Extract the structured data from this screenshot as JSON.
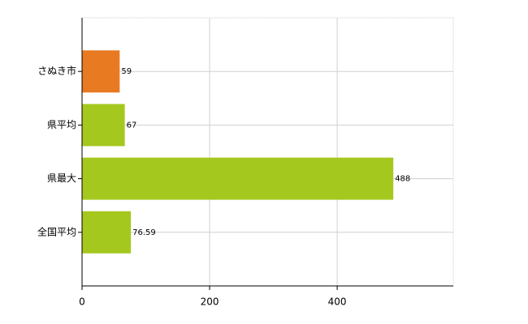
{
  "chart_data": {
    "type": "bar",
    "orientation": "horizontal",
    "categories": [
      "さぬき市",
      "県平均",
      "県最大",
      "全国平均"
    ],
    "values": [
      59,
      67,
      488,
      76.59
    ],
    "colors": [
      "#e87a22",
      "#a5c81f",
      "#a5c81f",
      "#a5c81f"
    ],
    "xlim": [
      0,
      582
    ],
    "xticks": [
      0,
      200,
      400
    ],
    "grid": true
  }
}
